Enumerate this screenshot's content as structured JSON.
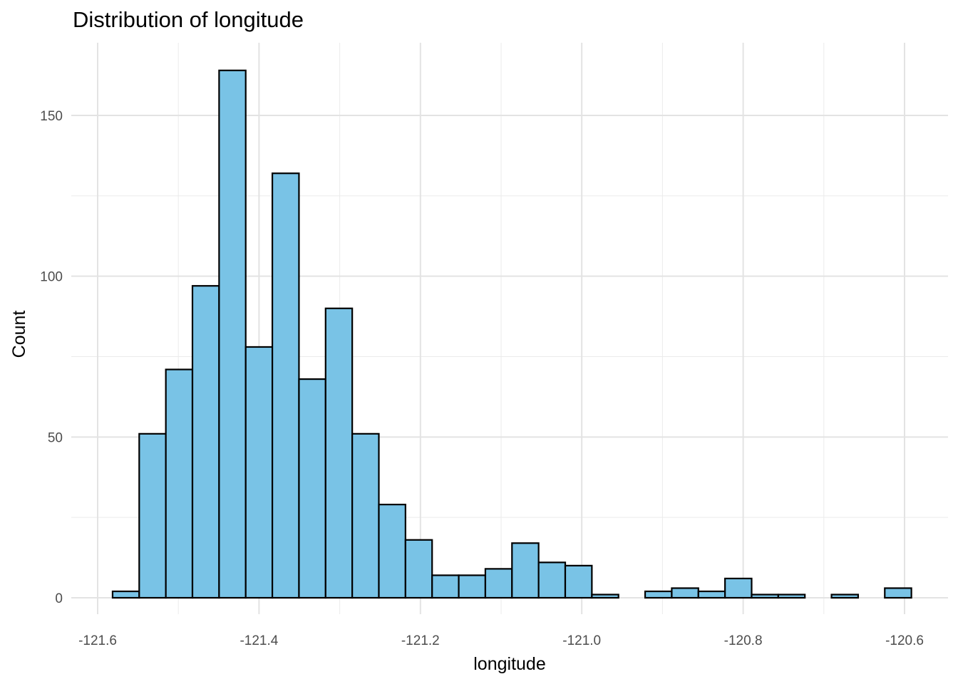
{
  "chart_data": {
    "type": "bar",
    "title": "Distribution of longitude",
    "xlabel": "longitude",
    "ylabel": "Count",
    "xlim": [
      -121.6,
      -120.6
    ],
    "ylim": [
      0,
      165
    ],
    "x_ticks": [
      -121.6,
      -121.4,
      -121.2,
      -121.0,
      -120.8,
      -120.6
    ],
    "x_tick_labels": [
      "-121.6",
      "-121.4",
      "-121.2",
      "-121.0",
      "-120.8",
      "-120.6"
    ],
    "y_ticks": [
      0,
      50,
      100,
      150
    ],
    "y_tick_labels": [
      "0",
      "50",
      "100",
      "150"
    ],
    "bin_width": 0.033,
    "bin_centers": [
      -121.565,
      -121.532,
      -121.499,
      -121.466,
      -121.433,
      -121.4,
      -121.367,
      -121.334,
      -121.301,
      -121.268,
      -121.235,
      -121.202,
      -121.169,
      -121.136,
      -121.103,
      -121.07,
      -121.037,
      -121.004,
      -120.971,
      -120.938,
      -120.905,
      -120.872,
      -120.839,
      -120.806,
      -120.773,
      -120.74,
      -120.707,
      -120.674,
      -120.641,
      -120.608
    ],
    "values": [
      2,
      51,
      71,
      97,
      164,
      78,
      132,
      68,
      90,
      51,
      29,
      18,
      7,
      7,
      9,
      17,
      11,
      10,
      1,
      0,
      2,
      3,
      2,
      6,
      1,
      1,
      0,
      1,
      0,
      3
    ],
    "bar_fill": "#79C3E6",
    "bar_stroke": "#000000",
    "grid": true,
    "legend": "none"
  }
}
